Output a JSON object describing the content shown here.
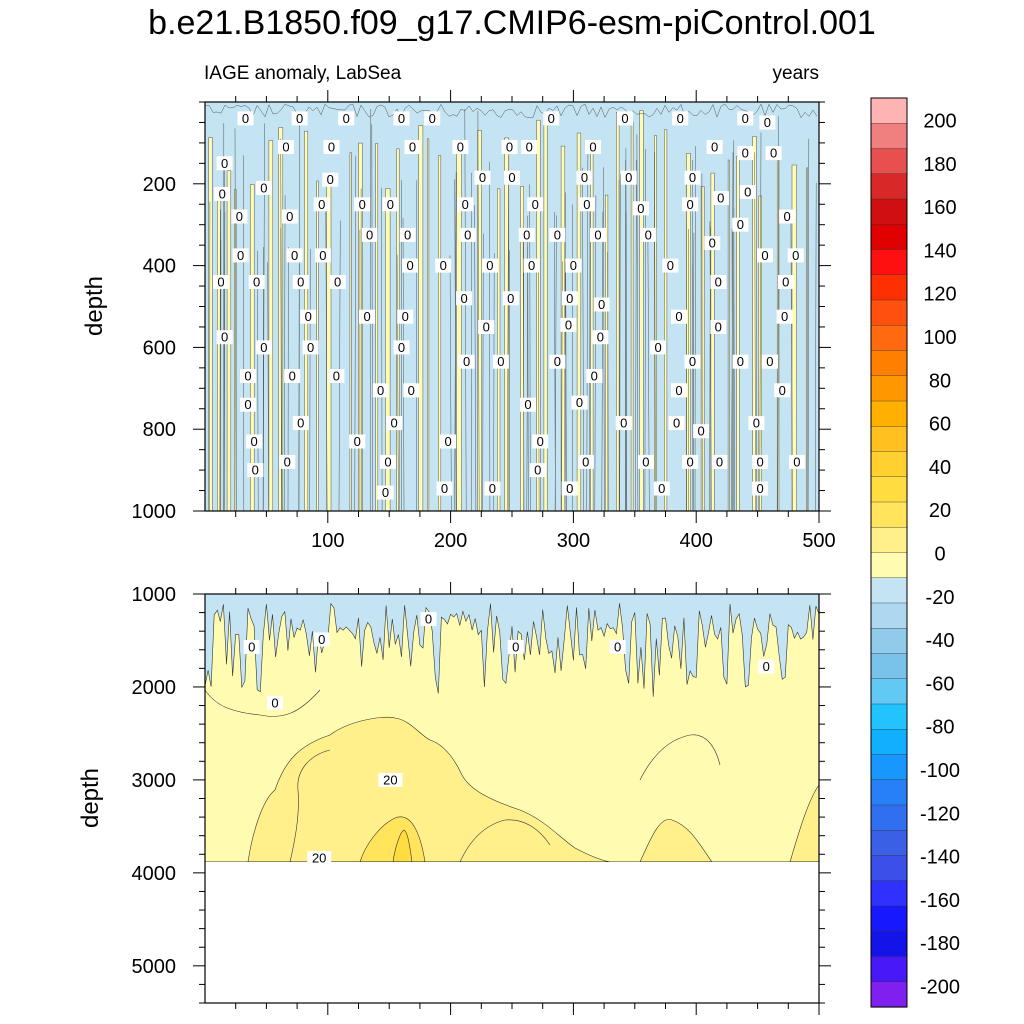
{
  "chart_data": {
    "type": "contour",
    "title": "b.e21.B1850.f09_g17.CMIP6-esm-piControl.001",
    "subtitle_left": "IAGE anomaly, LabSea",
    "subtitle_right": "years",
    "xlabel": "",
    "x_range": [
      0,
      500
    ],
    "x_tick_labels": [
      "100",
      "200",
      "300",
      "400",
      "500"
    ],
    "x_tick_values": [
      100,
      200,
      300,
      400,
      500
    ],
    "panels": [
      {
        "name": "upper",
        "ylabel": "depth",
        "y_range": [
          0,
          1000
        ],
        "y_tick_labels": [
          "200",
          "400",
          "600",
          "800",
          "1000"
        ],
        "y_tick_values": [
          200,
          400,
          600,
          800,
          1000
        ],
        "description_values": "mostly near-zero negative anomaly (light blue) with thin vertical bands of 0 to 20 (pale yellow)",
        "contour_label_text": "0",
        "contour_labels": [
          [
            33,
            40
          ],
          [
            77,
            40
          ],
          [
            115,
            40
          ],
          [
            160,
            40
          ],
          [
            185,
            40
          ],
          [
            282,
            40
          ],
          [
            342,
            40
          ],
          [
            387,
            40
          ],
          [
            440,
            40
          ],
          [
            458,
            50
          ],
          [
            66,
            110
          ],
          [
            103,
            110
          ],
          [
            169,
            110
          ],
          [
            208,
            110
          ],
          [
            248,
            110
          ],
          [
            264,
            110
          ],
          [
            316,
            110
          ],
          [
            415,
            110
          ],
          [
            440,
            125
          ],
          [
            463,
            125
          ],
          [
            16,
            150
          ],
          [
            48,
            210
          ],
          [
            14,
            225
          ],
          [
            102,
            190
          ],
          [
            226,
            185
          ],
          [
            250,
            185
          ],
          [
            309,
            185
          ],
          [
            345,
            185
          ],
          [
            397,
            185
          ],
          [
            442,
            220
          ],
          [
            28,
            280
          ],
          [
            95,
            250
          ],
          [
            128,
            250
          ],
          [
            151,
            250
          ],
          [
            212,
            250
          ],
          [
            269,
            250
          ],
          [
            311,
            250
          ],
          [
            355,
            260
          ],
          [
            395,
            250
          ],
          [
            420,
            235
          ],
          [
            69,
            280
          ],
          [
            474,
            280
          ],
          [
            134,
            325
          ],
          [
            165,
            325
          ],
          [
            214,
            325
          ],
          [
            262,
            325
          ],
          [
            287,
            325
          ],
          [
            320,
            325
          ],
          [
            361,
            325
          ],
          [
            436,
            300
          ],
          [
            29,
            375
          ],
          [
            73,
            375
          ],
          [
            96,
            375
          ],
          [
            167,
            400
          ],
          [
            194,
            400
          ],
          [
            232,
            400
          ],
          [
            266,
            400
          ],
          [
            300,
            400
          ],
          [
            379,
            400
          ],
          [
            413,
            345
          ],
          [
            13,
            440
          ],
          [
            42,
            440
          ],
          [
            78,
            440
          ],
          [
            108,
            440
          ],
          [
            418,
            440
          ],
          [
            456,
            375
          ],
          [
            481,
            375
          ],
          [
            473,
            440
          ],
          [
            84,
            525
          ],
          [
            132,
            525
          ],
          [
            163,
            525
          ],
          [
            211,
            480
          ],
          [
            249,
            480
          ],
          [
            297,
            480
          ],
          [
            323,
            495
          ],
          [
            386,
            525
          ],
          [
            418,
            550
          ],
          [
            16,
            575
          ],
          [
            48,
            600
          ],
          [
            86,
            600
          ],
          [
            160,
            600
          ],
          [
            229,
            550
          ],
          [
            296,
            545
          ],
          [
            322,
            575
          ],
          [
            472,
            525
          ],
          [
            35,
            670
          ],
          [
            71,
            670
          ],
          [
            107,
            670
          ],
          [
            213,
            635
          ],
          [
            241,
            635
          ],
          [
            287,
            635
          ],
          [
            317,
            670
          ],
          [
            369,
            600
          ],
          [
            397,
            635
          ],
          [
            436,
            635
          ],
          [
            460,
            635
          ],
          [
            143,
            705
          ],
          [
            168,
            705
          ],
          [
            263,
            740
          ],
          [
            305,
            735
          ],
          [
            386,
            705
          ],
          [
            470,
            705
          ],
          [
            35,
            740
          ],
          [
            40,
            830
          ],
          [
            78,
            785
          ],
          [
            154,
            785
          ],
          [
            124,
            830
          ],
          [
            198,
            830
          ],
          [
            273,
            830
          ],
          [
            341,
            785
          ],
          [
            384,
            785
          ],
          [
            404,
            805
          ],
          [
            449,
            785
          ],
          [
            41,
            900
          ],
          [
            67,
            880
          ],
          [
            149,
            880
          ],
          [
            271,
            900
          ],
          [
            310,
            880
          ],
          [
            359,
            880
          ],
          [
            395,
            880
          ],
          [
            419,
            880
          ],
          [
            452,
            880
          ],
          [
            482,
            880
          ],
          [
            147,
            955
          ],
          [
            195,
            945
          ],
          [
            234,
            945
          ],
          [
            297,
            945
          ],
          [
            372,
            945
          ],
          [
            452,
            945
          ]
        ]
      },
      {
        "name": "lower",
        "ylabel": "depth",
        "y_range": [
          1000,
          5400
        ],
        "y_tick_labels": [
          "1000",
          "2000",
          "3000",
          "4000",
          "5000"
        ],
        "y_tick_values": [
          1000,
          2000,
          3000,
          4000,
          5000
        ],
        "data_bottom": 3870,
        "description_values": "negative anomaly spikes near 1000-2000 m, positive 0-20 below, local maximum above 20 near year 160 at about 3800 m",
        "contour_labels": [
          {
            "text": "0",
            "x": 38,
            "y": 1570
          },
          {
            "text": "0",
            "x": 95,
            "y": 1490
          },
          {
            "text": "0",
            "x": 182,
            "y": 1270
          },
          {
            "text": "0",
            "x": 253,
            "y": 1570
          },
          {
            "text": "0",
            "x": 336,
            "y": 1570
          },
          {
            "text": "0",
            "x": 457,
            "y": 1780
          },
          {
            "text": "0",
            "x": 57,
            "y": 2170
          },
          {
            "text": "20",
            "x": 151,
            "y": 3000
          },
          {
            "text": "20",
            "x": 93,
            "y": 3840
          }
        ]
      }
    ],
    "colorbar": {
      "labels": [
        "200",
        "180",
        "160",
        "140",
        "120",
        "100",
        "80",
        "60",
        "40",
        "20",
        "0",
        "-20",
        "-40",
        "-60",
        "-80",
        "-100",
        "-120",
        "-140",
        "-160",
        "-180",
        "-200"
      ],
      "colors": [
        "#FFB4B4",
        "#F08080",
        "#E85050",
        "#D82828",
        "#D01010",
        "#E00000",
        "#FF1010",
        "#FF3000",
        "#FF5010",
        "#FF6A10",
        "#FF8000",
        "#FF9800",
        "#FFB000",
        "#FFC020",
        "#FFD030",
        "#FFDC40",
        "#FFE45C",
        "#FFF08C",
        "#FFFBB0",
        "#C4E4F4",
        "#ADD8F0",
        "#90CBEC",
        "#79C2EA",
        "#62C8F4",
        "#22C4FF",
        "#10B0FF",
        "#1898FF",
        "#2880F8",
        "#3070F0",
        "#3A60E6",
        "#3A50E8",
        "#3030FF",
        "#1818FF",
        "#1414E8",
        "#4818F8",
        "#8020F0"
      ]
    }
  }
}
